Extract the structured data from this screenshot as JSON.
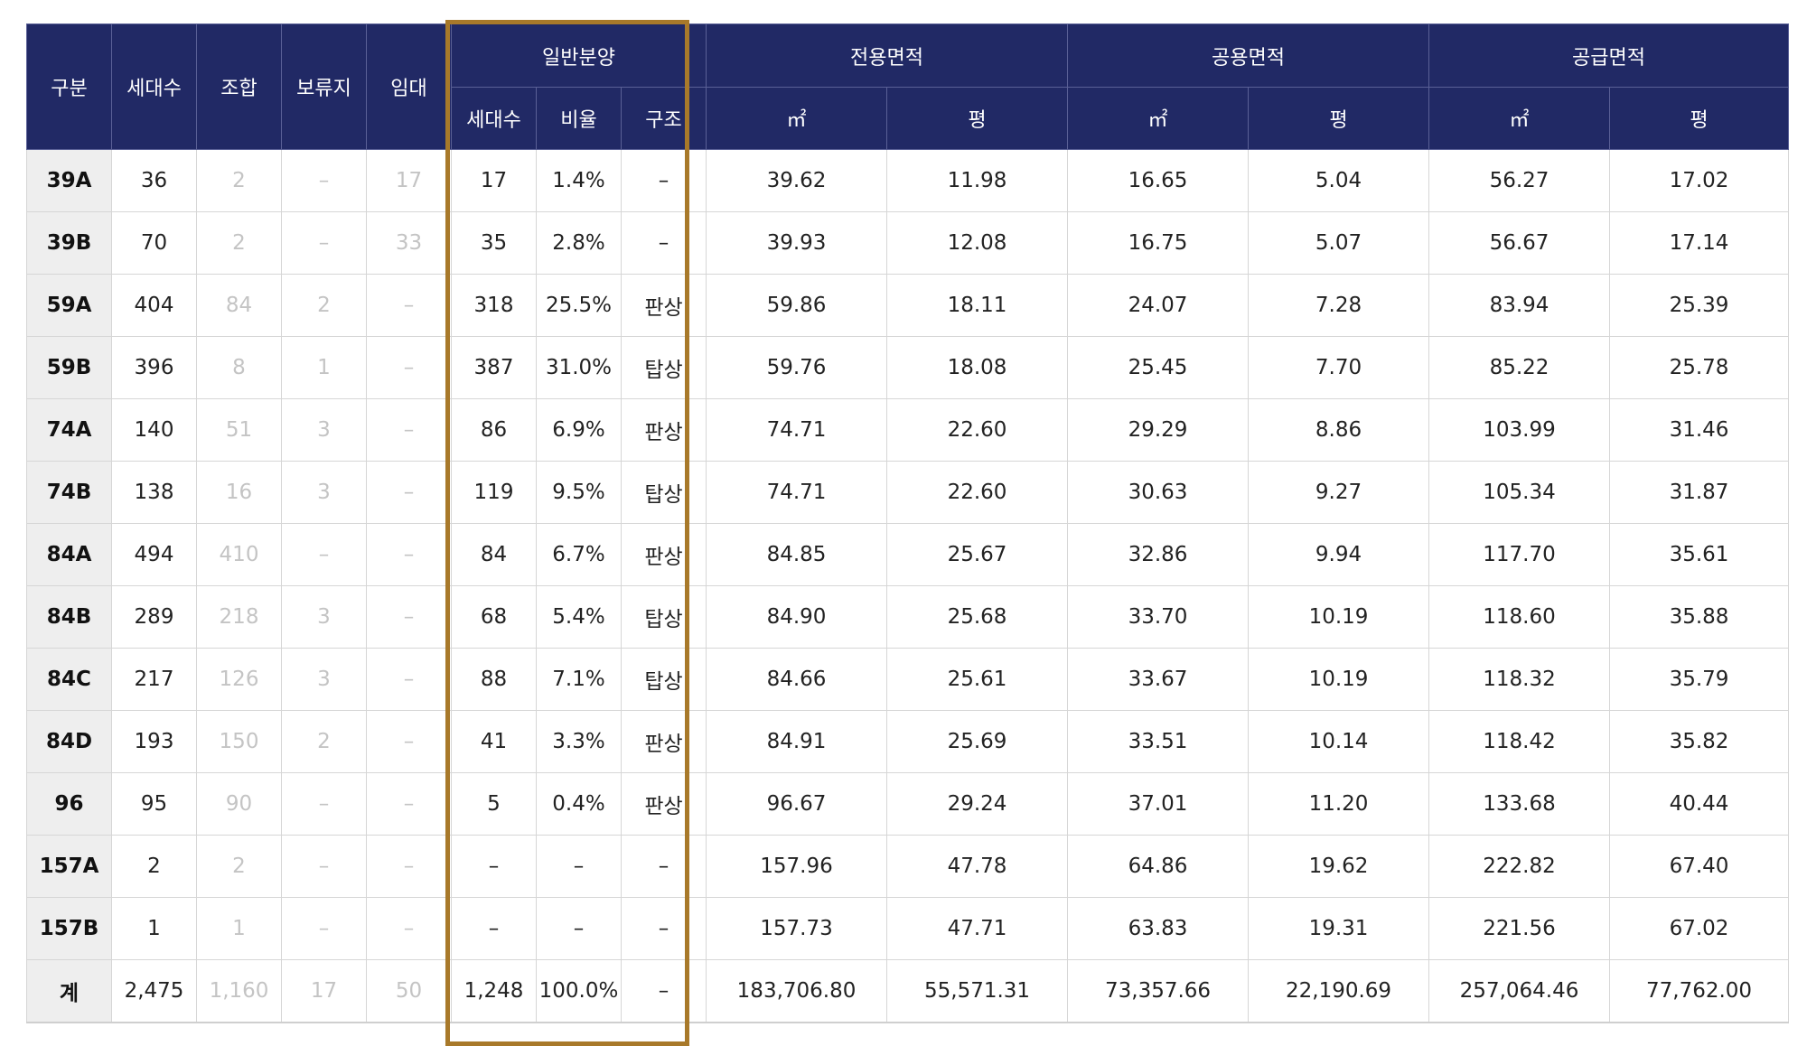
{
  "header": {
    "gubun": "구분",
    "households": "세대수",
    "union": "조합",
    "reserved": "보류지",
    "rental": "임대",
    "general": {
      "title": "일반분양",
      "households": "세대수",
      "ratio": "비율",
      "structure": "구조"
    },
    "exclusive_area": {
      "title": "전용면적",
      "m2": "㎡",
      "pyeong": "평"
    },
    "common_area": {
      "title": "공용면적",
      "m2": "㎡",
      "pyeong": "평"
    },
    "supply_area": {
      "title": "공급면적",
      "m2": "㎡",
      "pyeong": "평"
    }
  },
  "rows": [
    [
      "39A",
      "36",
      "2",
      "–",
      "17",
      "17",
      "1.4%",
      "–",
      "39.62",
      "11.98",
      "16.65",
      "5.04",
      "56.27",
      "17.02"
    ],
    [
      "39B",
      "70",
      "2",
      "–",
      "33",
      "35",
      "2.8%",
      "–",
      "39.93",
      "12.08",
      "16.75",
      "5.07",
      "56.67",
      "17.14"
    ],
    [
      "59A",
      "404",
      "84",
      "2",
      "–",
      "318",
      "25.5%",
      "판상",
      "59.86",
      "18.11",
      "24.07",
      "7.28",
      "83.94",
      "25.39"
    ],
    [
      "59B",
      "396",
      "8",
      "1",
      "–",
      "387",
      "31.0%",
      "탑상",
      "59.76",
      "18.08",
      "25.45",
      "7.70",
      "85.22",
      "25.78"
    ],
    [
      "74A",
      "140",
      "51",
      "3",
      "–",
      "86",
      "6.9%",
      "판상",
      "74.71",
      "22.60",
      "29.29",
      "8.86",
      "103.99",
      "31.46"
    ],
    [
      "74B",
      "138",
      "16",
      "3",
      "–",
      "119",
      "9.5%",
      "탑상",
      "74.71",
      "22.60",
      "30.63",
      "9.27",
      "105.34",
      "31.87"
    ],
    [
      "84A",
      "494",
      "410",
      "–",
      "–",
      "84",
      "6.7%",
      "판상",
      "84.85",
      "25.67",
      "32.86",
      "9.94",
      "117.70",
      "35.61"
    ],
    [
      "84B",
      "289",
      "218",
      "3",
      "–",
      "68",
      "5.4%",
      "탑상",
      "84.90",
      "25.68",
      "33.70",
      "10.19",
      "118.60",
      "35.88"
    ],
    [
      "84C",
      "217",
      "126",
      "3",
      "–",
      "88",
      "7.1%",
      "탑상",
      "84.66",
      "25.61",
      "33.67",
      "10.19",
      "118.32",
      "35.79"
    ],
    [
      "84D",
      "193",
      "150",
      "2",
      "–",
      "41",
      "3.3%",
      "판상",
      "84.91",
      "25.69",
      "33.51",
      "10.14",
      "118.42",
      "35.82"
    ],
    [
      "96",
      "95",
      "90",
      "–",
      "–",
      "5",
      "0.4%",
      "판상",
      "96.67",
      "29.24",
      "37.01",
      "11.20",
      "133.68",
      "40.44"
    ],
    [
      "157A",
      "2",
      "2",
      "–",
      "–",
      "–",
      "–",
      "–",
      "157.96",
      "47.78",
      "64.86",
      "19.62",
      "222.82",
      "67.40"
    ],
    [
      "157B",
      "1",
      "1",
      "–",
      "–",
      "–",
      "–",
      "–",
      "157.73",
      "47.71",
      "63.83",
      "19.31",
      "221.56",
      "67.02"
    ],
    [
      "계",
      "2,475",
      "1,160",
      "17",
      "50",
      "1,248",
      "100.0%",
      "–",
      "183,706.80",
      "55,571.31",
      "73,357.66",
      "22,190.69",
      "257,064.46",
      "77,762.00"
    ]
  ],
  "colors": {
    "header_bg": "#212965",
    "highlight_border": "#a8792a",
    "label_bg": "#eeeeee",
    "dim_text": "#c4c4c4"
  }
}
